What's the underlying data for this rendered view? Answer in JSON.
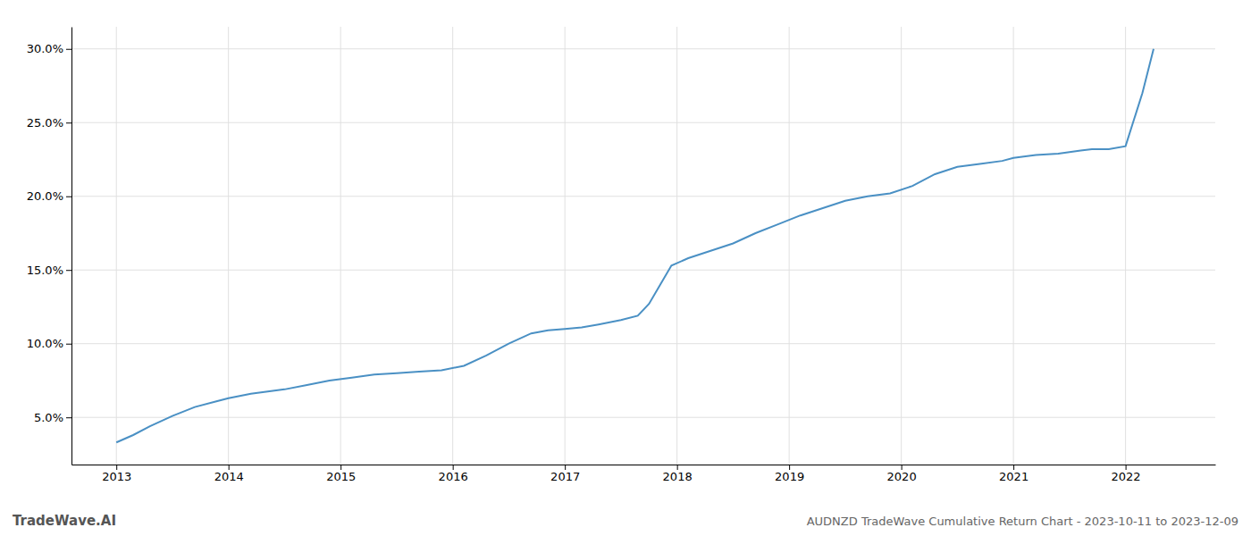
{
  "chart_data": {
    "type": "line",
    "title": "AUDNZD TradeWave Cumulative Return Chart - 2023-10-11 to 2023-12-09",
    "annotations": [
      "TradeWave.AI"
    ],
    "color": "#4a90c4",
    "grid": true,
    "x": [
      2013.0,
      2013.15,
      2013.3,
      2013.5,
      2013.7,
      2013.9,
      2014.0,
      2014.2,
      2014.5,
      2014.7,
      2014.9,
      2015.1,
      2015.3,
      2015.5,
      2015.7,
      2015.9,
      2016.1,
      2016.3,
      2016.5,
      2016.7,
      2016.85,
      2017.0,
      2017.15,
      2017.3,
      2017.5,
      2017.65,
      2017.75,
      2017.85,
      2017.95,
      2018.1,
      2018.3,
      2018.5,
      2018.7,
      2018.9,
      2019.1,
      2019.3,
      2019.5,
      2019.7,
      2019.9,
      2020.1,
      2020.3,
      2020.5,
      2020.7,
      2020.9,
      2021.0,
      2021.2,
      2021.4,
      2021.5,
      2021.6,
      2021.7,
      2021.85,
      2022.0,
      2022.15,
      2022.25
    ],
    "values": [
      0.033,
      0.038,
      0.044,
      0.051,
      0.057,
      0.061,
      0.063,
      0.066,
      0.069,
      0.072,
      0.075,
      0.077,
      0.079,
      0.08,
      0.081,
      0.082,
      0.085,
      0.092,
      0.1,
      0.107,
      0.109,
      0.11,
      0.111,
      0.113,
      0.116,
      0.119,
      0.127,
      0.14,
      0.153,
      0.158,
      0.163,
      0.168,
      0.175,
      0.181,
      0.187,
      0.192,
      0.197,
      0.2,
      0.202,
      0.207,
      0.215,
      0.22,
      0.222,
      0.224,
      0.226,
      0.228,
      0.229,
      0.23,
      0.231,
      0.232,
      0.232,
      0.234,
      0.27,
      0.3
    ],
    "xlim": [
      2012.6,
      2022.8
    ],
    "xticks": [
      2013,
      2014,
      2015,
      2016,
      2017,
      2018,
      2019,
      2020,
      2021,
      2022
    ],
    "ylim": [
      0.018,
      0.315
    ],
    "yticks": [
      {
        "value": 0.05,
        "label": "5.0%"
      },
      {
        "value": 0.1,
        "label": "10.0%"
      },
      {
        "value": 0.15,
        "label": "15.0%"
      },
      {
        "value": 0.2,
        "label": "20.0%"
      },
      {
        "value": 0.25,
        "label": "25.0%"
      },
      {
        "value": 0.3,
        "label": "30.0%"
      }
    ]
  }
}
